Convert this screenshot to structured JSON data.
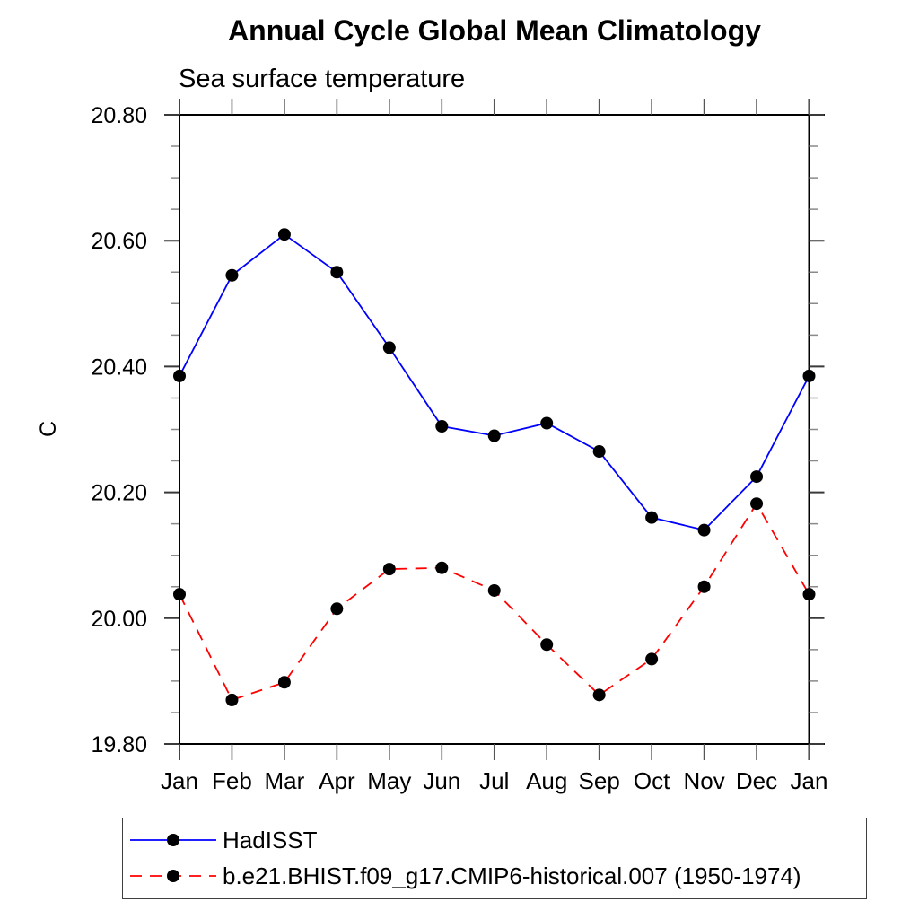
{
  "title": "Annual Cycle Global Mean Climatology",
  "subtitle": "Sea surface temperature",
  "chart_data": {
    "type": "line",
    "title": "Annual Cycle Global Mean Climatology",
    "subtitle": "Sea surface temperature",
    "xlabel": "",
    "ylabel": "C",
    "categories": [
      "Jan",
      "Feb",
      "Mar",
      "Apr",
      "May",
      "Jun",
      "Jul",
      "Aug",
      "Sep",
      "Oct",
      "Nov",
      "Dec",
      "Jan"
    ],
    "ylim": [
      19.8,
      20.8
    ],
    "ytick_labels": [
      "19.80",
      "20.00",
      "20.20",
      "20.40",
      "20.60",
      "20.80"
    ],
    "ytick_major_interval": 0.2,
    "ytick_minor_interval": 0.05,
    "grid": false,
    "legend_position": "bottom-left",
    "marker_color": "#000000",
    "axis_color": "#000000",
    "series": [
      {
        "name": "HadISST",
        "color": "#0000ff",
        "style": "solid",
        "marker": "circle",
        "values": [
          20.385,
          20.545,
          20.61,
          20.55,
          20.43,
          20.305,
          20.29,
          20.31,
          20.265,
          20.16,
          20.14,
          20.225,
          20.385
        ]
      },
      {
        "name": "b.e21.BHIST.f09_g17.CMIP6-historical.007 (1950-1974)",
        "color": "#ff0000",
        "style": "dashed",
        "marker": "circle",
        "values": [
          20.038,
          19.87,
          19.898,
          20.015,
          20.078,
          20.08,
          20.044,
          19.958,
          19.878,
          19.935,
          20.05,
          20.182,
          20.038
        ]
      }
    ]
  }
}
